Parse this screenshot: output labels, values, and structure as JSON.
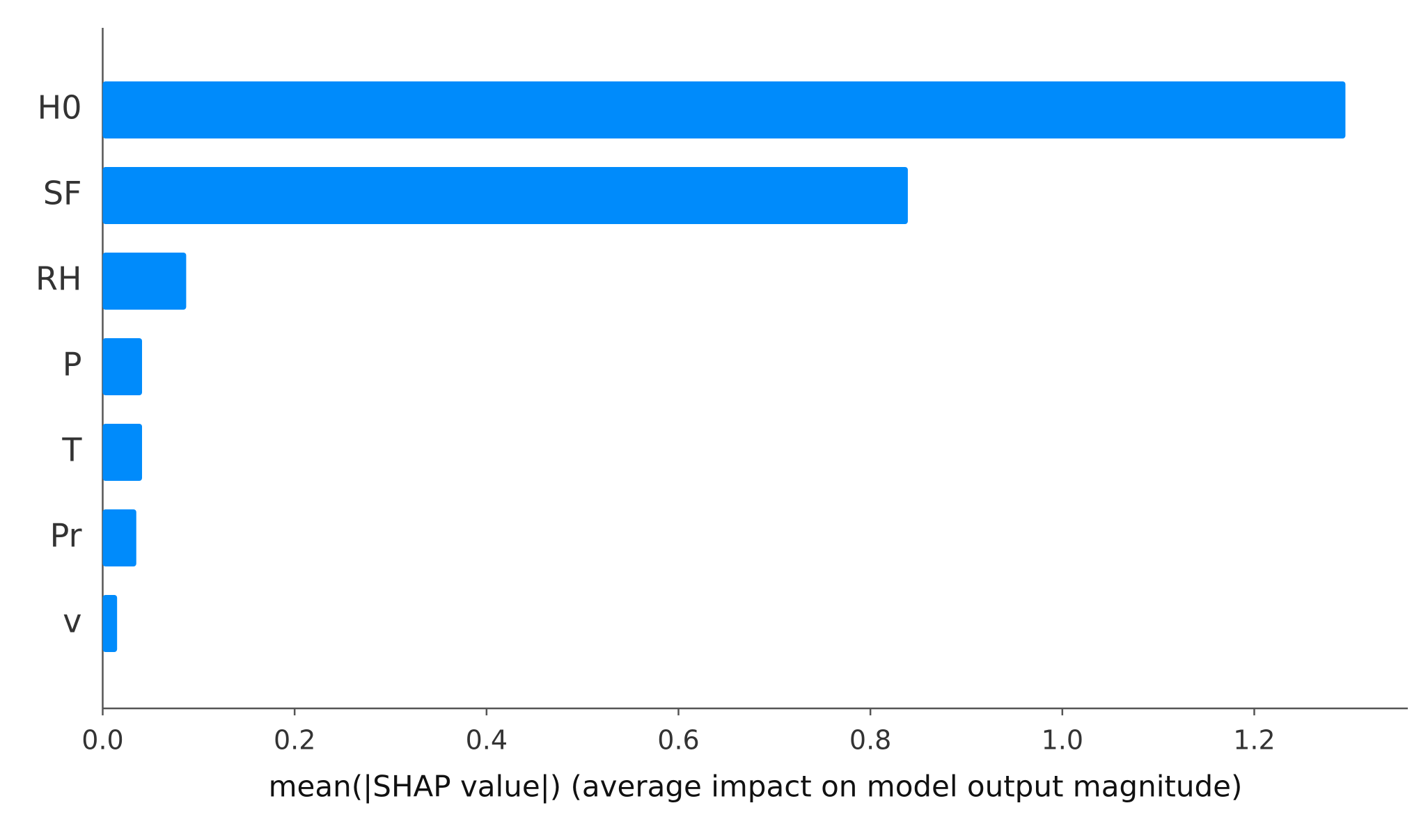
{
  "chart_data": {
    "type": "barh",
    "categories": [
      "H0",
      "SF",
      "RH",
      "P",
      "T",
      "Pr",
      "v"
    ],
    "values": [
      1.295,
      0.839,
      0.087,
      0.041,
      0.041,
      0.035,
      0.015
    ],
    "color": "#008bfb",
    "xlabel": "mean(|SHAP value|) (average impact on model output magnitude)",
    "xlim": [
      0,
      1.36
    ],
    "xticks": [
      {
        "value": 0,
        "label": "0.0"
      },
      0.2,
      0.4,
      0.6,
      0.8,
      {
        "value": 1,
        "label": "1.0"
      },
      1.2
    ]
  }
}
